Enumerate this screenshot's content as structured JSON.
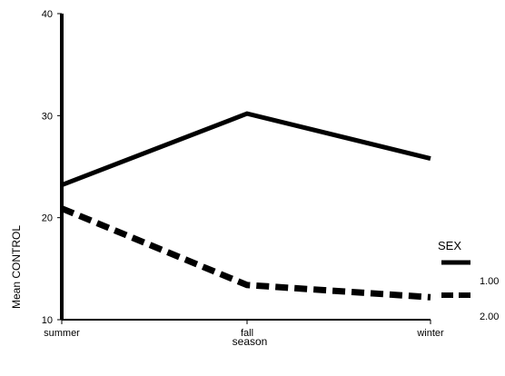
{
  "chart_data": {
    "type": "line",
    "title": "",
    "xlabel": "season",
    "ylabel": "Mean CONTROL",
    "categories": [
      "summer",
      "fall",
      "winter"
    ],
    "ylim": [
      10,
      40
    ],
    "yticks": [
      10,
      20,
      30,
      40
    ],
    "grid": false,
    "legend": {
      "title": "SEX",
      "position": "right",
      "entries": [
        "1.00",
        "2.00"
      ]
    },
    "series": [
      {
        "name": "1.00",
        "values": [
          23.2,
          30.2,
          25.8
        ],
        "line_style": "solid",
        "color": "#000000"
      },
      {
        "name": "2.00",
        "values": [
          20.9,
          13.4,
          12.2
        ],
        "line_style": "dashed",
        "color": "#000000"
      }
    ]
  }
}
